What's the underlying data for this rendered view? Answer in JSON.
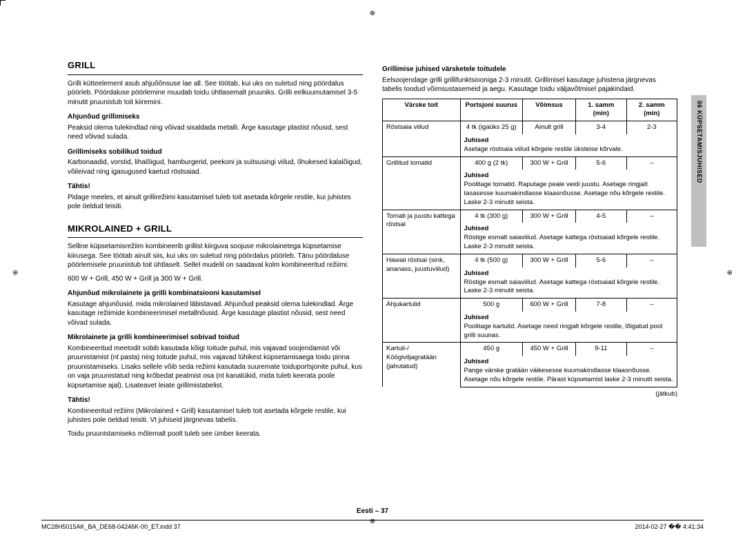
{
  "left": {
    "h_grill": "GRILL",
    "p_grill_intro": "Grilli kütteelement asub ahjuõõnsuse lae all. See töötab, kui uks on suletud ning pöördalus pöörleb. Pöördaluse pöörlemine muudab toidu ühtlasemalt pruuniks. Grilli eelkuumutamisel 3-5 minutit pruunistub toit kiiremini.",
    "h_ahjun_grill": "Ahjunõud grillimiseks",
    "p_ahjun_grill": "Peaksid olema tulekindlad ning võivad sisaldada metalli. Ärge kasutage plastist nõusid, sest need võivad sulada.",
    "h_sobilik": "Grillimiseks sobilikud toidud",
    "p_sobilik": "Karbonaadid, vorstid, lihalõigud, hamburgerid, peekoni ja suitsusingi viilud, õhukesed kalalõigud, võileivad ning igasugused kaetud röstsaiad.",
    "h_tahtis1": "Tähtis!",
    "p_tahtis1": "Pidage meeles, et ainult grillirežiimi kasutamisel tuleb toit asetada kõrgele restile, kui juhistes pole öeldud teisiti.",
    "h_mikro": "MIKROLAINED + GRILL",
    "p_mikro_intro": "Selline küpsetamisrežiim kombineerib grillist kiirguva soojuse mikrolainetega küpsetamise kiirusega. See töötab ainult siis, kui uks on suletud ning pöördalus pöörleb. Tänu pöördaluse pöörlemisele pruunistub toit ühtlaselt. Sellel mudelil on saadaval kolm kombineeritud režiimi:",
    "p_mikro_modes": "600 W + Grill, 450 W + Grill ja 300 W + Grill.",
    "h_ahjun_kombi": "Ahjunõud mikrolainete ja grilli kombinatsiooni kasutamisel",
    "p_ahjun_kombi": "Kasutage ahjunõusid, mida mikrolained läbistavad. Ahjunõud peaksid olema tulekindlad. Ärge kasutage režiimide kombineerimisel metallnõusid. Ärge kasutage plastist nõusid, sest need võivad sulada.",
    "h_kombi_sobiv": "Mikrolainete ja grilli kombineerimisel sobivad toidud",
    "p_kombi_sobiv": "Kombineeritud meetodit sobib kasutada kõigi toitude puhul, mis vajavad soojendamist või pruunistamist (nt pasta) ning toitude puhul, mis vajavad lühikest küpsetamisaega toidu pinna pruunistamiseks. Lisaks sellele võib seda režiimi kasutada suuremate toiduportsjonite puhul, kus on vaja pruunistatud ning krõbedat pealmist osa (nt kanatükid, mida tuleb keerata poole küpsetamise ajal). Lisateavet leiate grillimistabelist.",
    "h_tahtis2": "Tähtis!",
    "p_tahtis2a": "Kombineeritud režiimi (Mikrolained + Grill) kasutamisel tuleb toit asetada kõrgele restile, kui juhistes pole öeldud teisiti. Vt juhiseid järgnevas tabelis.",
    "p_tahtis2b": "Toidu pruunistamiseks mõlemalt poolt tuleb see ümber keerata."
  },
  "right": {
    "h_table": "Grillimise juhised värsketele toitudele",
    "p_table_intro": "Eelsoojendage grilli grillifunktsiooniga 2-3 minutit. Grillimisel kasutage juhistena järgnevas tabelis toodud võimsustasemeid ja aegu. Kasutage toidu väljavõtmisel pajakindaid.",
    "th": {
      "c1": "Värske toit",
      "c2": "Portsjoni suurus",
      "c3": "Võimsus",
      "c4": "1. samm (min)",
      "c5": "2. samm (min)"
    },
    "rows": [
      {
        "food": "Röstsaia viilud",
        "portion": "4 tk (igaüks 25 g)",
        "power": "Ainult grill",
        "t1": "3-4",
        "t2": "2-3",
        "juh": "Asetage röstsaia viilud kõrgele restile üksteise kõrvale."
      },
      {
        "food": "Grillitud tomatid",
        "portion": "400 g (2 tk)",
        "power": "300 W + Grill",
        "t1": "5-6",
        "t2": "–",
        "juh": "Poolitage tomatid. Raputage peale veidi juustu. Asetage ringjalt tasasesse kuumakindlasse klaasnõusse. Asetage nõu kõrgele restile. Laske 2-3 minutit seista."
      },
      {
        "food": "Tomati ja juustu kattega röstsai",
        "portion": "4 tk (300 g)",
        "power": "300 W + Grill",
        "t1": "4-5",
        "t2": "–",
        "juh": "Röstige esmalt saiaviilud. Asetage kattega röstsaiad kõrgele restile. Laske 2-3 minutit seista."
      },
      {
        "food": "Hawaii röstsai (sink, ananass, juustuviilud)",
        "portion": "4 tk (500 g)",
        "power": "300 W + Grill",
        "t1": "5-6",
        "t2": "–",
        "juh": "Röstige esmalt saiaviilud. Asetage kattega röstsaiad kõrgele restile. Laske 2-3 minutit seista."
      },
      {
        "food": "Ahjukartulid",
        "portion": "500 g",
        "power": "600 W + Grill",
        "t1": "7-8",
        "t2": "–",
        "juh": "Poolitage kartulid. Asetage need ringjalt kõrgele restile, lõigatud pool grilli suunas."
      },
      {
        "food": "Kartuli-/ Köögiviljagratään (jahutatud)",
        "portion": "450 g",
        "power": "450 W + Grill",
        "t1": "9-11",
        "t2": "–",
        "juh": "Pange värske gratään väikesesse kuumakindlasse klaasnõusse. Asetage nõu kõrgele restile. Pärast küpsetamist laske 2-3 minutit seista."
      }
    ],
    "juhised_label": "Juhised",
    "continues": "(jätkub)",
    "sidebar": "06  KÜPSETAMISJUHISED"
  },
  "footer": {
    "page": "Eesti – 37",
    "file": "MC28H5015AK_BA_DE68-04246K-00_ET.indd   37",
    "date": "2014-02-27   �� 4:41:34"
  }
}
